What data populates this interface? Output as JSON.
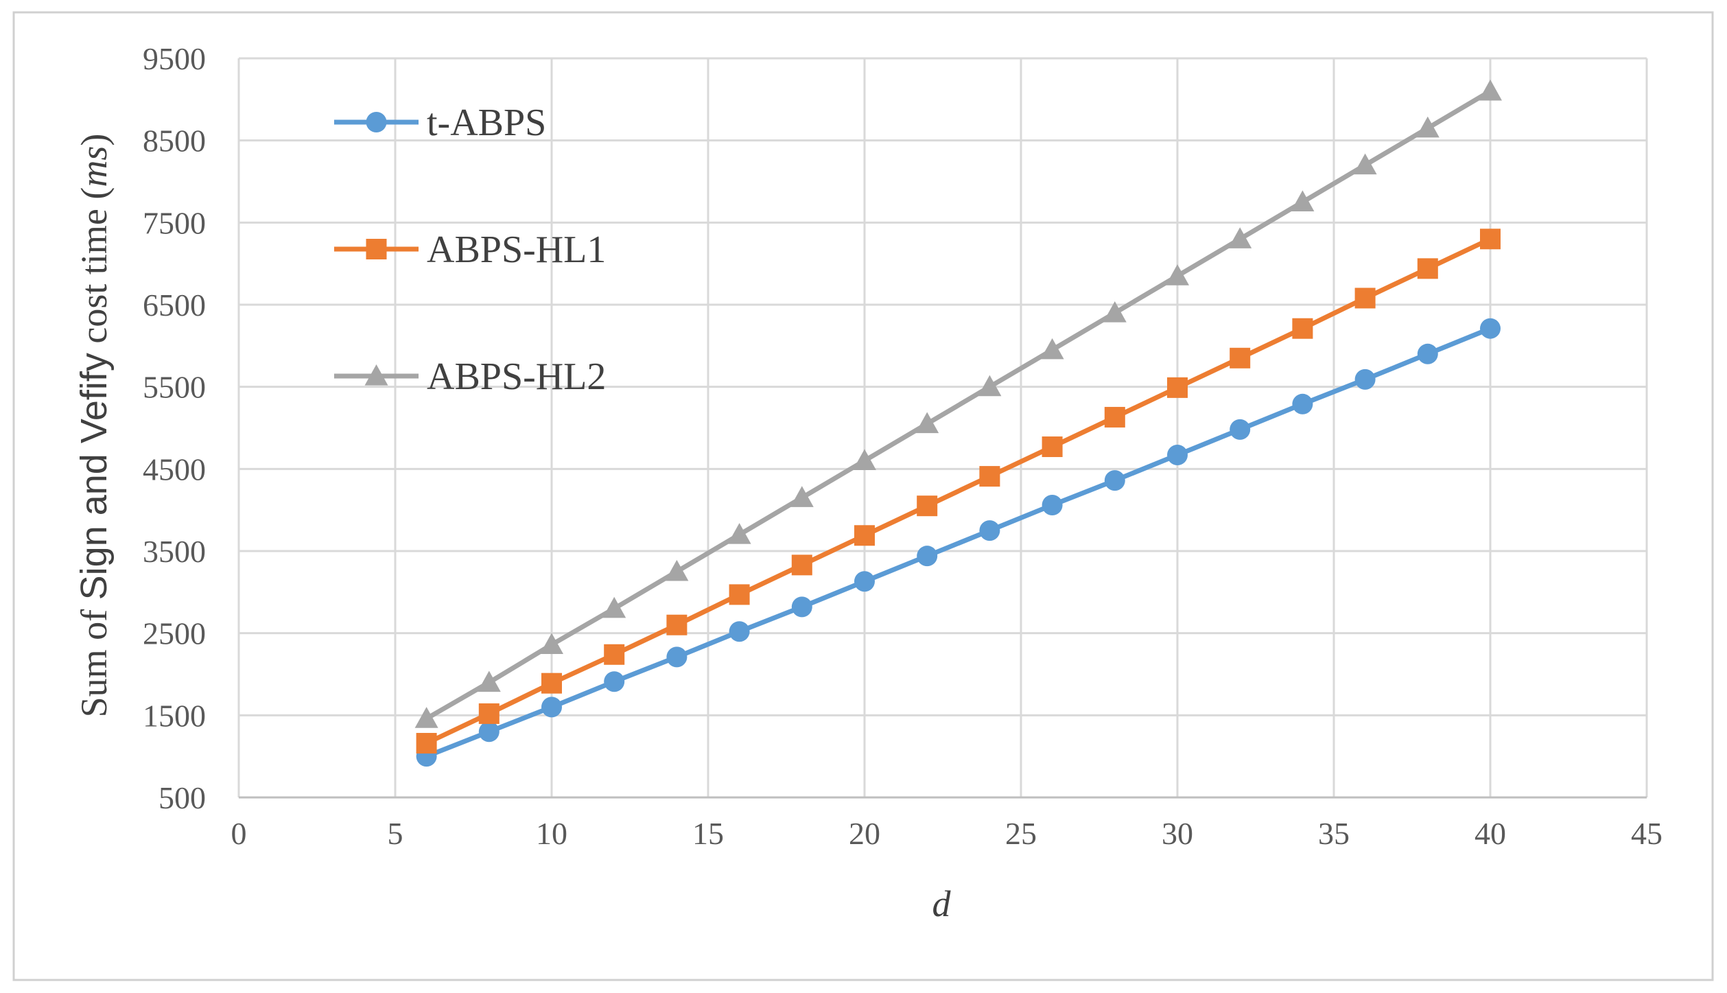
{
  "chart_data": {
    "type": "line",
    "xlabel": "d",
    "ylabel": {
      "pre": "Sum of ",
      "mid": "Sign and Vefify",
      "post": " cost time (",
      "unit": "ms",
      "close": ")"
    },
    "xlim": [
      0,
      45
    ],
    "ylim": [
      500,
      9500
    ],
    "xticks": [
      "0",
      "5",
      "10",
      "15",
      "20",
      "25",
      "30",
      "35",
      "40",
      "45"
    ],
    "yticks": [
      "500",
      "1500",
      "2500",
      "3500",
      "4500",
      "5500",
      "6500",
      "7500",
      "8500",
      "9500"
    ],
    "grid": true,
    "legend_position": "top-left",
    "x": [
      6,
      8,
      10,
      12,
      14,
      16,
      18,
      20,
      22,
      24,
      26,
      28,
      30,
      32,
      34,
      36,
      38,
      40
    ],
    "series": [
      {
        "name": "t-ABPS",
        "color": "#5B9BD5",
        "marker": "circle",
        "values": [
          1000,
          1300,
          1600,
          1910,
          2210,
          2520,
          2820,
          3130,
          3440,
          3750,
          4060,
          4360,
          4670,
          4980,
          5290,
          5590,
          5900,
          6210
        ]
      },
      {
        "name": "ABPS-HL1",
        "color": "#ED7D31",
        "marker": "square",
        "values": [
          1160,
          1520,
          1890,
          2240,
          2600,
          2970,
          3330,
          3690,
          4050,
          4410,
          4770,
          5130,
          5490,
          5850,
          6210,
          6580,
          6940,
          7300
        ]
      },
      {
        "name": "ABPS-HL2",
        "color": "#A5A5A5",
        "marker": "triangle",
        "values": [
          1460,
          1900,
          2360,
          2800,
          3250,
          3700,
          4150,
          4600,
          5050,
          5500,
          5950,
          6400,
          6850,
          7300,
          7750,
          8200,
          8650,
          9100
        ]
      }
    ]
  }
}
